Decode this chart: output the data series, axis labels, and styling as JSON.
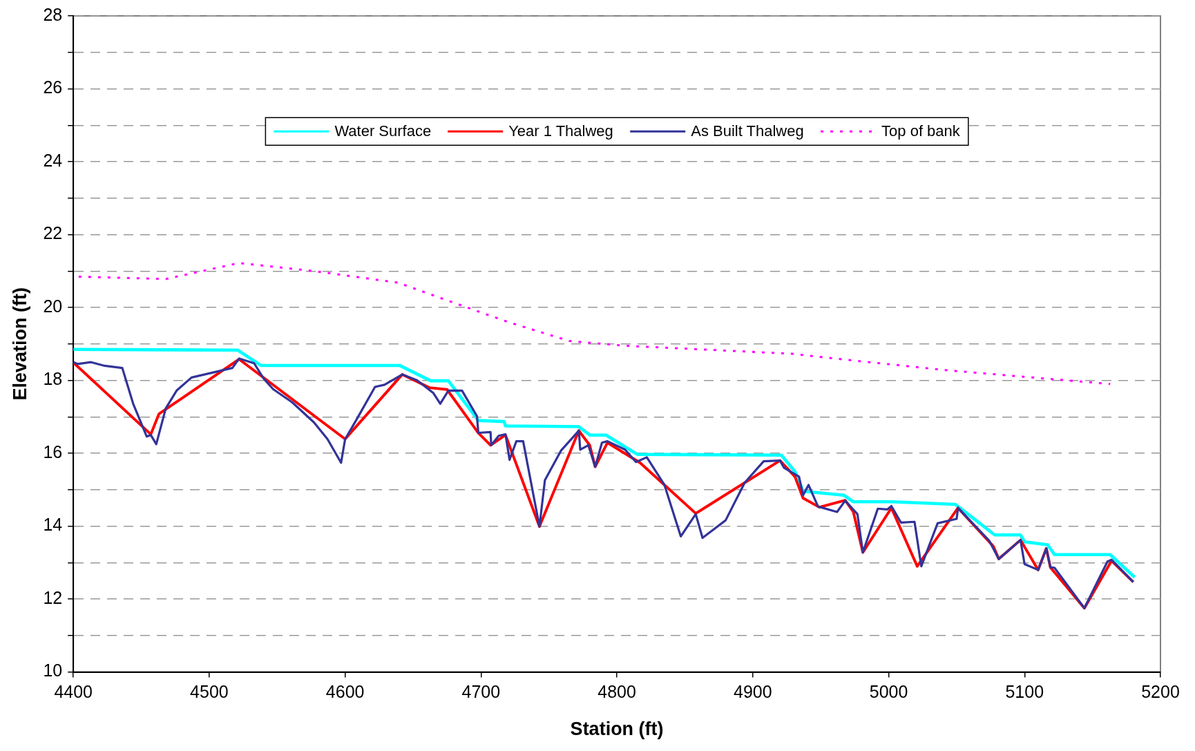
{
  "chart_data": {
    "type": "line",
    "xlabel": "Station (ft)",
    "ylabel": "Elevation (ft)",
    "xlim": [
      4400,
      5200
    ],
    "xticks": [
      4400,
      4500,
      4600,
      4700,
      4800,
      4900,
      5000,
      5100,
      5200
    ],
    "ylim": [
      10,
      28
    ],
    "yticks": [
      10,
      {
        "value": 11,
        "label": null
      },
      12,
      {
        "value": 13,
        "label": null
      },
      14,
      {
        "value": 15,
        "label": null
      },
      16,
      {
        "value": 17,
        "label": null
      },
      18,
      {
        "value": 19,
        "label": null
      },
      20,
      {
        "value": 21,
        "label": null
      },
      22,
      {
        "value": 23,
        "label": null
      },
      24,
      {
        "value": 25,
        "label": null
      },
      26,
      {
        "value": 27,
        "label": null
      },
      28
    ],
    "grid": "y",
    "legend": "top",
    "marker": "none",
    "series": [
      {
        "name": "Water Surface",
        "color": "#00ffff",
        "line_style": "solid",
        "x": [
          4400,
          4521,
          4538,
          4640,
          4663,
          4676,
          4698,
          4717,
          4718,
          4772,
          4780,
          4792,
          4815,
          4921,
          4931,
          4937,
          4967,
          4974,
          5002,
          5049,
          5078,
          5097,
          5100,
          5117,
          5122,
          5163,
          5181
        ],
        "values": [
          18.85,
          18.83,
          18.41,
          18.41,
          17.99,
          17.99,
          16.9,
          16.87,
          16.75,
          16.73,
          16.5,
          16.5,
          15.97,
          15.95,
          15.5,
          14.96,
          14.85,
          14.67,
          14.67,
          14.6,
          13.76,
          13.76,
          13.57,
          13.49,
          13.22,
          13.22,
          12.6
        ]
      },
      {
        "name": "Year 1 Thalweg",
        "color": "#ff0000",
        "line_style": "solid",
        "x": [
          4400,
          4457,
          4463,
          4522,
          4600,
          4642,
          4662,
          4675,
          4698,
          4707,
          4718,
          4743,
          4772,
          4780,
          4784,
          4793,
          4817,
          4858,
          4920,
          4931,
          4937,
          4949,
          4968,
          4974,
          4981,
          5002,
          5021,
          5051,
          5077,
          5081,
          5097,
          5110,
          5116,
          5119,
          5144,
          5164,
          5180
        ],
        "values": [
          18.49,
          16.52,
          17.08,
          18.58,
          16.39,
          18.16,
          17.8,
          17.75,
          16.56,
          16.22,
          16.5,
          13.99,
          16.62,
          16.22,
          15.63,
          16.29,
          15.74,
          14.35,
          15.8,
          15.36,
          14.77,
          14.52,
          14.71,
          14.39,
          13.28,
          14.5,
          12.9,
          14.5,
          13.45,
          13.1,
          13.62,
          12.8,
          13.39,
          12.87,
          11.75,
          13.05,
          12.47
        ]
      },
      {
        "name": "As Built Thalweg",
        "color": "#333399",
        "line_style": "solid",
        "x": [
          4400,
          4403,
          4413,
          4423,
          4436,
          4444,
          4454,
          4457,
          4461,
          4468,
          4476,
          4487,
          4517,
          4522,
          4533,
          4540,
          4547,
          4561,
          4577,
          4587,
          4597,
          4600,
          4608,
          4622,
          4629,
          4642,
          4653,
          4665,
          4670,
          4676,
          4686,
          4697,
          4698,
          4707,
          4707.5,
          4713,
          4718,
          4721,
          4726,
          4731,
          4743,
          4747,
          4759,
          4772,
          4773,
          4779,
          4784,
          4789,
          4793,
          4806,
          4814,
          4822,
          4835,
          4847,
          4858,
          4863,
          4880,
          4894,
          4908,
          4920,
          4923,
          4934,
          4937,
          4941,
          4948,
          4962,
          4968,
          4977,
          4981,
          4992,
          4999,
          5002,
          5009,
          5019,
          5024,
          5036,
          5050,
          5051,
          5074,
          5081,
          5097,
          5100,
          5110,
          5116,
          5119,
          5122,
          5144,
          5161,
          5164,
          5180
        ],
        "values": [
          18.5,
          18.45,
          18.5,
          18.4,
          18.34,
          17.36,
          16.46,
          16.5,
          16.25,
          17.23,
          17.72,
          18.08,
          18.34,
          18.6,
          18.47,
          18.05,
          17.76,
          17.4,
          16.85,
          16.39,
          15.74,
          16.39,
          16.9,
          17.82,
          17.88,
          18.16,
          18.0,
          17.65,
          17.36,
          17.72,
          17.72,
          17.02,
          16.56,
          16.58,
          16.22,
          16.48,
          16.52,
          15.82,
          16.33,
          16.33,
          13.99,
          15.26,
          16.08,
          16.62,
          16.1,
          16.22,
          15.63,
          16.29,
          16.33,
          16.1,
          15.76,
          15.89,
          15.13,
          13.72,
          14.33,
          13.68,
          14.16,
          15.19,
          15.78,
          15.8,
          15.6,
          15.36,
          14.85,
          15.13,
          14.54,
          14.39,
          14.7,
          14.33,
          13.28,
          14.48,
          14.46,
          14.55,
          14.1,
          14.12,
          12.9,
          14.08,
          14.2,
          14.5,
          13.6,
          13.1,
          13.62,
          12.96,
          12.8,
          13.39,
          12.87,
          12.86,
          11.75,
          13.03,
          13.08,
          12.47
        ]
      },
      {
        "name": "Top of bank",
        "color": "#ff00ff",
        "line_style": "dotted",
        "x": [
          4400,
          4468,
          4522,
          4577,
          4639,
          4683,
          4720,
          4765,
          4806,
          4929,
          4960,
          5042,
          5163
        ],
        "values": [
          20.85,
          20.78,
          21.22,
          21.0,
          20.68,
          20.09,
          19.6,
          19.08,
          18.95,
          18.73,
          18.6,
          18.28,
          17.9
        ]
      }
    ]
  }
}
